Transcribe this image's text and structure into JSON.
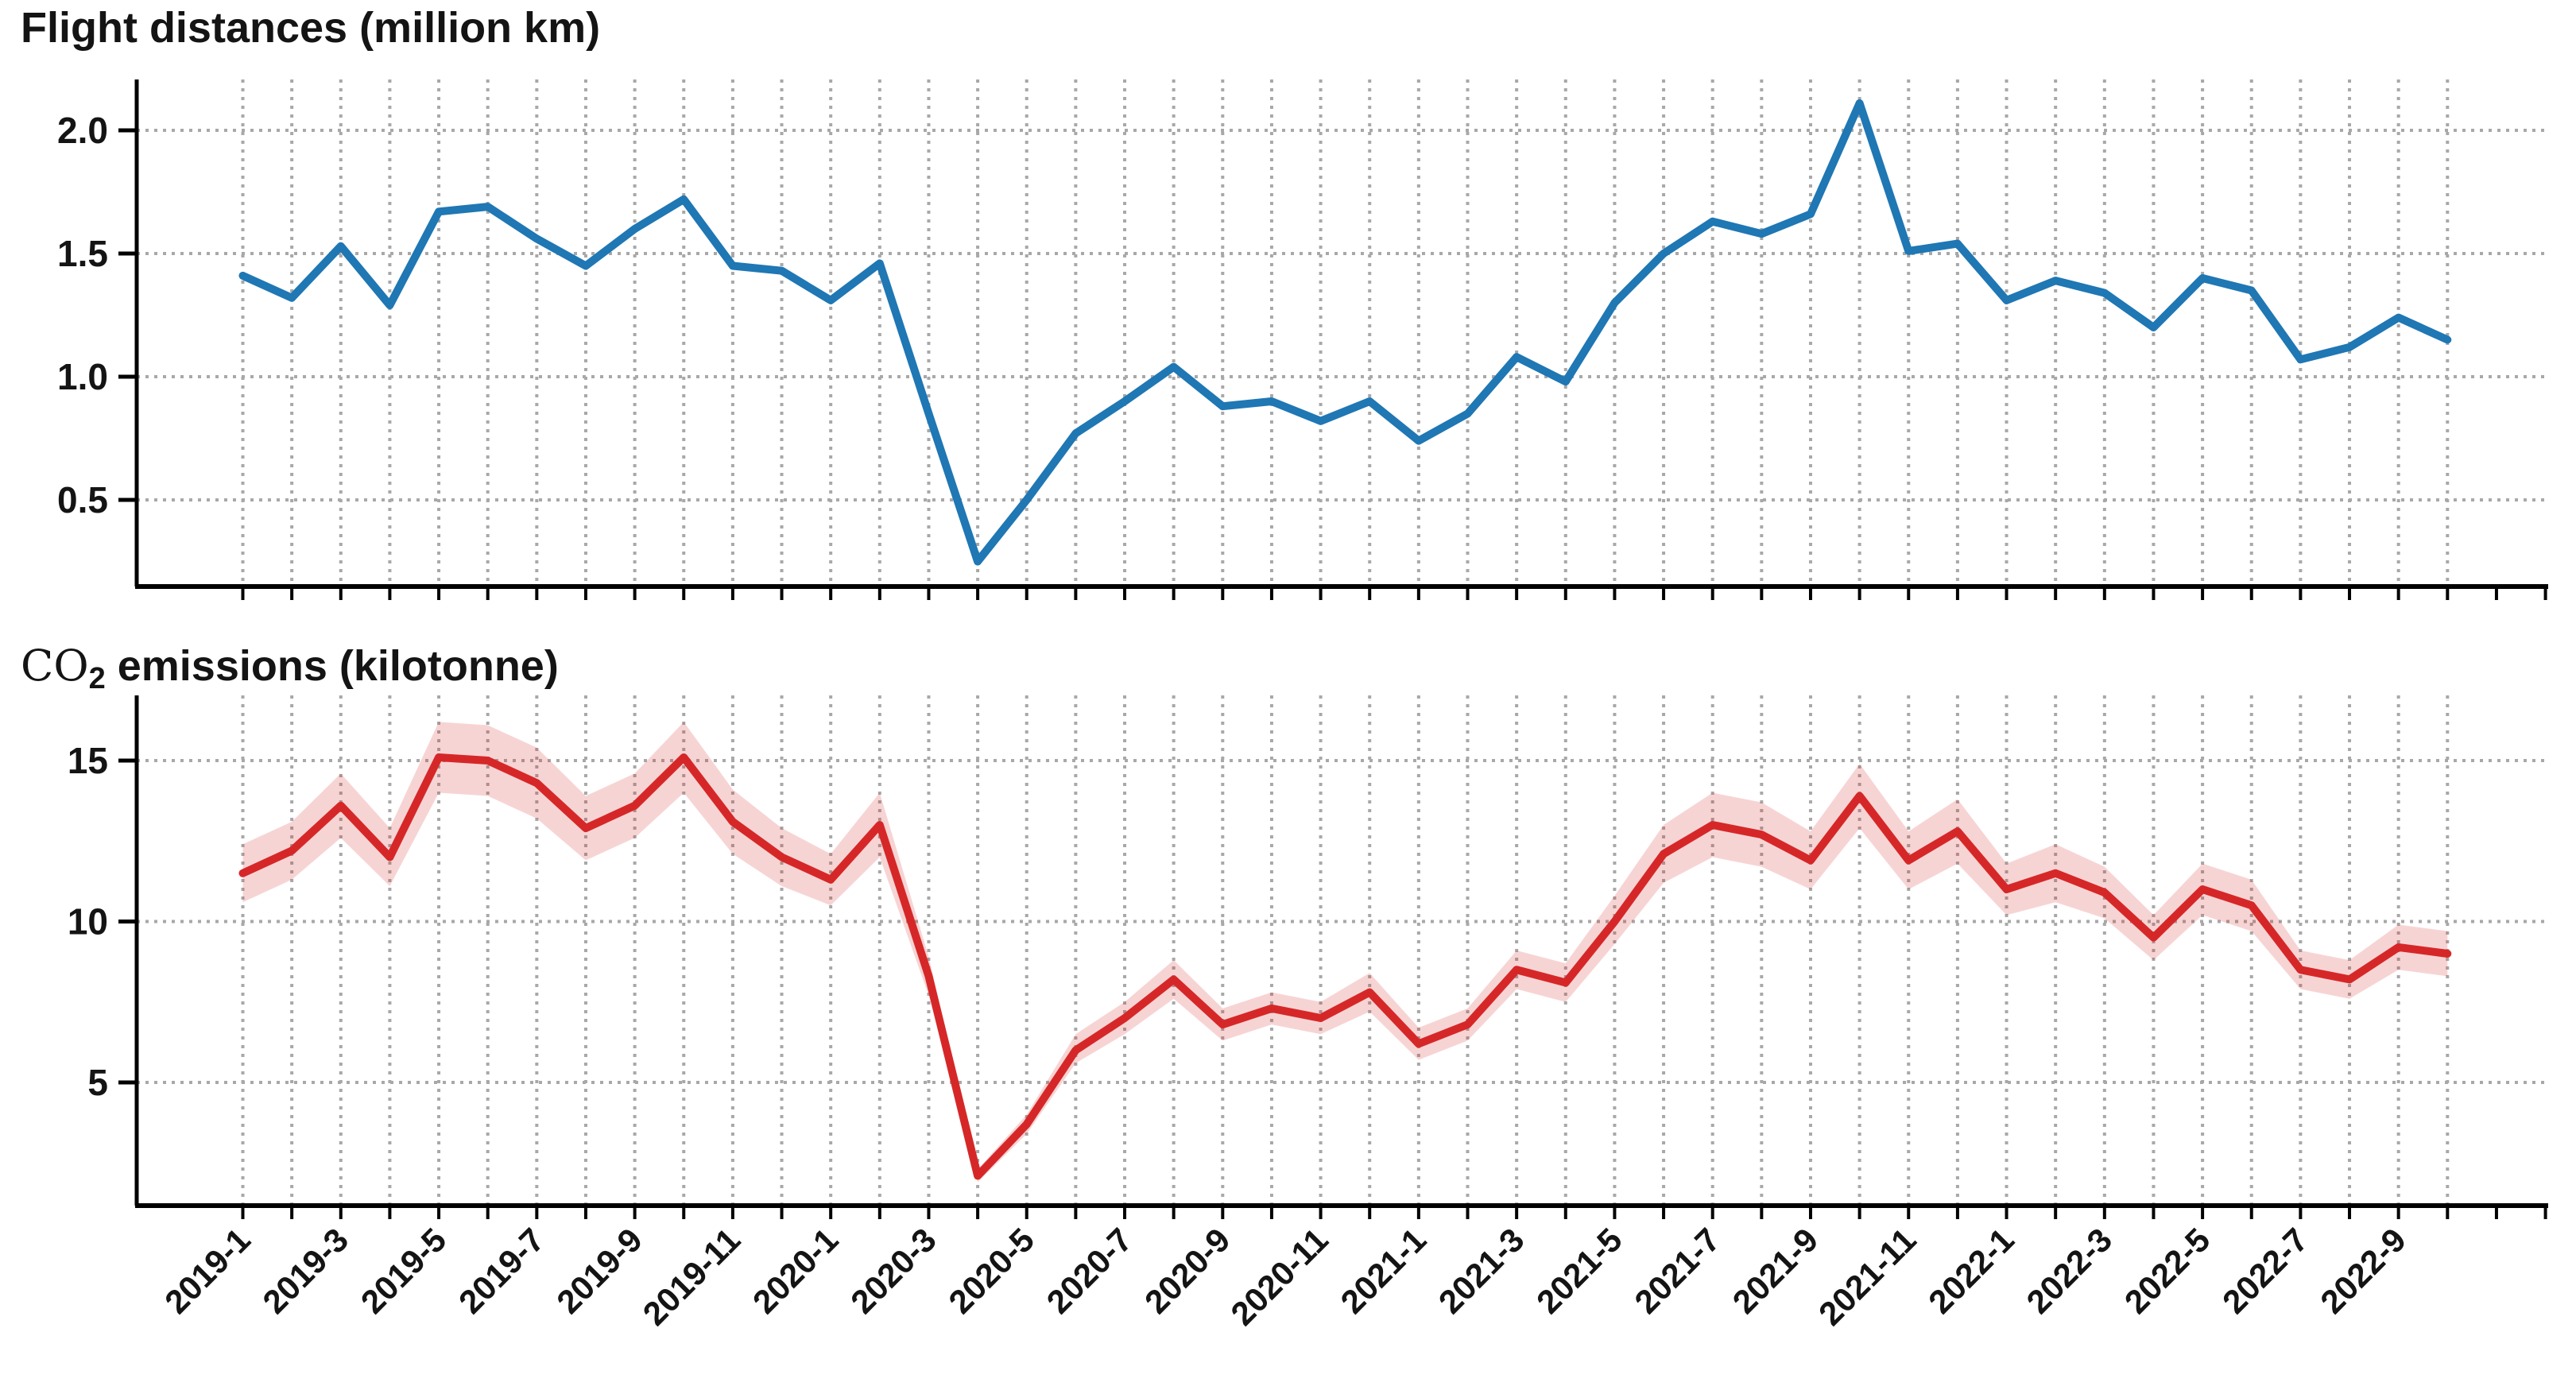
{
  "page": {
    "background": "#ffffff"
  },
  "chart_data": [
    {
      "type": "line",
      "title": "Flight distances (million km)",
      "xlabel": "",
      "ylabel": "million km",
      "legend": "none",
      "grid": "dotted",
      "line_color": "#1f77b4",
      "ylim": [
        0.15,
        2.25
      ],
      "y_ticks": [
        0.5,
        1.0,
        1.5,
        2.0
      ],
      "y_tick_labels": [
        "0.5",
        "1.0",
        "1.5",
        "2.0"
      ],
      "x": [
        "2019-1",
        "2019-2",
        "2019-3",
        "2019-4",
        "2019-5",
        "2019-6",
        "2019-7",
        "2019-8",
        "2019-9",
        "2019-10",
        "2019-11",
        "2019-12",
        "2020-1",
        "2020-2",
        "2020-3",
        "2020-4",
        "2020-5",
        "2020-6",
        "2020-7",
        "2020-8",
        "2020-9",
        "2020-10",
        "2020-11",
        "2020-12",
        "2021-1",
        "2021-2",
        "2021-3",
        "2021-4",
        "2021-5",
        "2021-6",
        "2021-7",
        "2021-8",
        "2021-9",
        "2021-10",
        "2021-11",
        "2021-12",
        "2022-1",
        "2022-2",
        "2022-3",
        "2022-4",
        "2022-5",
        "2022-6",
        "2022-7",
        "2022-8",
        "2022-9",
        "2022-10"
      ],
      "x_tick_labels_shown": [
        "2019-1",
        "2019-3",
        "2019-5",
        "2019-7",
        "2019-9",
        "2019-11",
        "2020-1",
        "2020-3",
        "2020-5",
        "2020-7",
        "2020-9",
        "2020-11",
        "2021-1",
        "2021-3",
        "2021-5",
        "2021-7",
        "2021-9",
        "2021-11",
        "2022-1",
        "2022-3",
        "2022-5",
        "2022-7",
        "2022-9"
      ],
      "series": [
        {
          "name": "flight-distances",
          "color": "#1f77b4",
          "values": [
            1.41,
            1.32,
            1.53,
            1.29,
            1.67,
            1.69,
            1.56,
            1.45,
            1.6,
            1.72,
            1.45,
            1.43,
            1.31,
            1.46,
            0.85,
            0.25,
            0.5,
            0.77,
            0.9,
            1.04,
            0.88,
            0.9,
            0.82,
            0.9,
            0.74,
            0.85,
            1.08,
            0.98,
            1.3,
            1.5,
            1.63,
            1.58,
            1.66,
            2.11,
            1.51,
            1.54,
            1.31,
            1.39,
            1.34,
            1.2,
            1.4,
            1.35,
            1.07,
            1.12,
            1.24,
            1.15
          ]
        }
      ]
    },
    {
      "type": "line-with-band",
      "title": "CO2 emissions (kilotonne)",
      "title_co": "CO",
      "title_sub": "2",
      "title_rest": " emissions (kilotonne)",
      "xlabel": "",
      "ylabel": "kilotonne",
      "legend": "none",
      "grid": "dotted",
      "line_color": "#d62728",
      "band_color": "rgba(214,39,40,0.2)",
      "ylim": [
        1.1,
        16.6
      ],
      "y_ticks": [
        5,
        10,
        15
      ],
      "y_tick_labels": [
        "5",
        "10",
        "15"
      ],
      "x": [
        "2019-1",
        "2019-2",
        "2019-3",
        "2019-4",
        "2019-5",
        "2019-6",
        "2019-7",
        "2019-8",
        "2019-9",
        "2019-10",
        "2019-11",
        "2019-12",
        "2020-1",
        "2020-2",
        "2020-3",
        "2020-4",
        "2020-5",
        "2020-6",
        "2020-7",
        "2020-8",
        "2020-9",
        "2020-10",
        "2020-11",
        "2020-12",
        "2021-1",
        "2021-2",
        "2021-3",
        "2021-4",
        "2021-5",
        "2021-6",
        "2021-7",
        "2021-8",
        "2021-9",
        "2021-10",
        "2021-11",
        "2021-12",
        "2022-1",
        "2022-2",
        "2022-3",
        "2022-4",
        "2022-5",
        "2022-6",
        "2022-7",
        "2022-8",
        "2022-9",
        "2022-10"
      ],
      "x_tick_labels_shown": [
        "2019-1",
        "2019-3",
        "2019-5",
        "2019-7",
        "2019-9",
        "2019-11",
        "2020-1",
        "2020-3",
        "2020-5",
        "2020-7",
        "2020-9",
        "2020-11",
        "2021-1",
        "2021-3",
        "2021-5",
        "2021-7",
        "2021-9",
        "2021-11",
        "2022-1",
        "2022-3",
        "2022-5",
        "2022-7",
        "2022-9"
      ],
      "series": [
        {
          "name": "co2-emissions",
          "color": "#d62728",
          "values": [
            11.5,
            12.2,
            13.6,
            12.0,
            15.1,
            15.0,
            14.3,
            12.9,
            13.6,
            15.1,
            13.1,
            12.0,
            11.3,
            13.0,
            8.3,
            2.1,
            3.7,
            6.0,
            7.0,
            8.2,
            6.8,
            7.3,
            7.0,
            7.8,
            6.2,
            6.8,
            8.5,
            8.1,
            10.0,
            12.1,
            13.0,
            12.7,
            11.9,
            13.9,
            11.9,
            12.8,
            11.0,
            11.5,
            10.9,
            9.5,
            11.0,
            10.5,
            8.5,
            8.2,
            9.2,
            9.0
          ],
          "band_upper": [
            12.4,
            13.1,
            14.6,
            12.9,
            16.2,
            16.1,
            15.4,
            13.9,
            14.6,
            16.2,
            14.1,
            12.9,
            12.1,
            14.0,
            8.9,
            2.3,
            4.0,
            6.5,
            7.5,
            8.8,
            7.3,
            7.8,
            7.5,
            8.4,
            6.7,
            7.3,
            9.1,
            8.7,
            10.8,
            13.0,
            14.0,
            13.7,
            12.8,
            14.9,
            12.8,
            13.8,
            11.8,
            12.4,
            11.7,
            10.2,
            11.8,
            11.3,
            9.1,
            8.8,
            9.9,
            9.7
          ],
          "band_lower": [
            10.6,
            11.3,
            12.6,
            11.1,
            14.0,
            13.9,
            13.2,
            11.9,
            12.6,
            14.0,
            12.1,
            11.1,
            10.5,
            12.0,
            7.7,
            1.9,
            3.4,
            5.6,
            6.5,
            7.6,
            6.3,
            6.8,
            6.5,
            7.2,
            5.7,
            6.3,
            7.9,
            7.5,
            9.3,
            11.2,
            12.0,
            11.7,
            11.0,
            12.9,
            11.0,
            11.8,
            10.2,
            10.6,
            10.1,
            8.8,
            10.2,
            9.7,
            7.9,
            7.6,
            8.5,
            8.3
          ]
        }
      ]
    }
  ],
  "style": {
    "grid_color": "#a8a8a8",
    "axis_color": "#000000",
    "text_color": "#141414"
  }
}
